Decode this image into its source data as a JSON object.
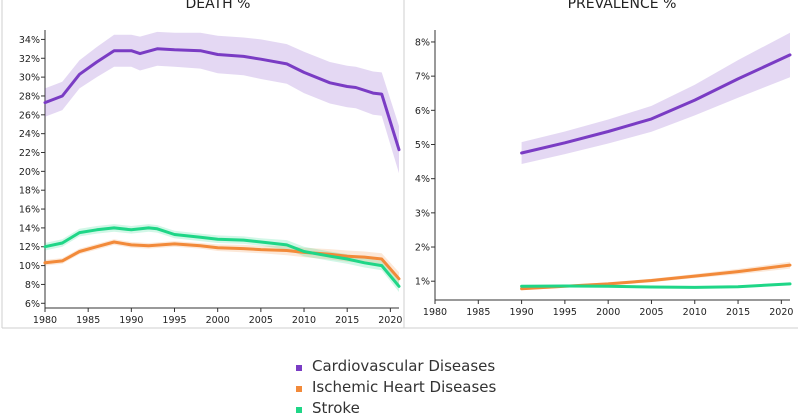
{
  "colors": {
    "cardio": "#7a3cc4",
    "ischemic": "#f28a3a",
    "stroke": "#1fd687",
    "axis": "#333333",
    "divider": "#cfcfcf"
  },
  "legend": {
    "items": [
      {
        "label": "Cardiovascular Diseases",
        "color": "#7a3cc4"
      },
      {
        "label": "Ischemic Heart Diseases",
        "color": "#f28a3a"
      },
      {
        "label": "Stroke",
        "color": "#1fd687"
      }
    ]
  },
  "chart_data": [
    {
      "type": "line",
      "title": "DEATH %",
      "xlabel": "",
      "ylabel": "",
      "xlim": [
        1980,
        2021
      ],
      "ylim": [
        5.5,
        35
      ],
      "x_ticks": [
        1980,
        1985,
        1990,
        1995,
        2000,
        2005,
        2010,
        2015,
        2020
      ],
      "y_ticks": [
        6,
        8,
        10,
        12,
        14,
        16,
        18,
        20,
        22,
        24,
        26,
        28,
        30,
        32,
        34
      ],
      "y_tick_labels": [
        "6%",
        "8%",
        "10%",
        "12%",
        "14%",
        "16%",
        "18%",
        "20%",
        "22%",
        "24%",
        "26%",
        "28%",
        "30%",
        "32%",
        "34%"
      ],
      "series": [
        {
          "name": "Cardiovascular Diseases",
          "color": "#7a3cc4",
          "x": [
            1980,
            1982,
            1984,
            1986,
            1988,
            1989,
            1990,
            1991,
            1993,
            1995,
            1998,
            2000,
            2003,
            2005,
            2008,
            2010,
            2013,
            2015,
            2016,
            2018,
            2019,
            2021
          ],
          "y": [
            27.3,
            28.0,
            30.3,
            31.6,
            32.8,
            32.8,
            32.8,
            32.5,
            33.0,
            32.9,
            32.8,
            32.4,
            32.2,
            31.9,
            31.4,
            30.5,
            29.4,
            29.0,
            28.9,
            28.3,
            28.2,
            22.3
          ],
          "band_half": [
            1.5,
            1.5,
            1.5,
            1.6,
            1.7,
            1.7,
            1.7,
            1.8,
            1.8,
            1.8,
            1.9,
            2.0,
            2.0,
            2.1,
            2.1,
            2.2,
            2.2,
            2.2,
            2.2,
            2.3,
            2.3,
            2.5
          ]
        },
        {
          "name": "Ischemic Heart Diseases",
          "color": "#f28a3a",
          "x": [
            1980,
            1982,
            1984,
            1986,
            1988,
            1990,
            1992,
            1995,
            1998,
            2000,
            2003,
            2005,
            2008,
            2010,
            2013,
            2015,
            2017,
            2019,
            2021
          ],
          "y": [
            10.3,
            10.5,
            11.5,
            12.0,
            12.5,
            12.2,
            12.1,
            12.3,
            12.1,
            11.9,
            11.8,
            11.7,
            11.6,
            11.4,
            11.2,
            11.0,
            10.9,
            10.7,
            8.6
          ],
          "band_half": [
            0.3,
            0.3,
            0.3,
            0.3,
            0.3,
            0.3,
            0.3,
            0.3,
            0.3,
            0.35,
            0.4,
            0.4,
            0.5,
            0.5,
            0.55,
            0.6,
            0.6,
            0.6,
            0.7
          ]
        },
        {
          "name": "Stroke",
          "color": "#1fd687",
          "x": [
            1980,
            1982,
            1984,
            1986,
            1988,
            1990,
            1992,
            1993,
            1995,
            1998,
            2000,
            2003,
            2005,
            2008,
            2010,
            2013,
            2015,
            2017,
            2019,
            2021
          ],
          "y": [
            12.0,
            12.4,
            13.5,
            13.8,
            14.0,
            13.8,
            14.0,
            13.9,
            13.3,
            13.0,
            12.8,
            12.7,
            12.5,
            12.2,
            11.5,
            11.0,
            10.7,
            10.3,
            10.0,
            7.8
          ],
          "band_half": [
            0.4,
            0.4,
            0.4,
            0.4,
            0.4,
            0.4,
            0.4,
            0.4,
            0.4,
            0.4,
            0.4,
            0.4,
            0.4,
            0.5,
            0.5,
            0.5,
            0.5,
            0.5,
            0.5,
            0.6
          ]
        }
      ]
    },
    {
      "type": "line",
      "title": "PREVALENCE %",
      "xlabel": "",
      "ylabel": "",
      "xlim": [
        1980,
        2021
      ],
      "ylim": [
        0.45,
        8.35
      ],
      "x_ticks": [
        1980,
        1985,
        1990,
        1995,
        2000,
        2005,
        2010,
        2015,
        2020
      ],
      "y_ticks": [
        1,
        2,
        3,
        4,
        5,
        6,
        7,
        8
      ],
      "y_tick_labels": [
        "1%",
        "2%",
        "3%",
        "4%",
        "5%",
        "6%",
        "7%",
        "8%"
      ],
      "series": [
        {
          "name": "Cardiovascular Diseases",
          "color": "#7a3cc4",
          "x": [
            1990,
            1995,
            2000,
            2005,
            2010,
            2015,
            2021
          ],
          "y": [
            4.75,
            5.05,
            5.38,
            5.75,
            6.3,
            6.92,
            7.62
          ],
          "band_half": [
            0.32,
            0.33,
            0.35,
            0.38,
            0.45,
            0.55,
            0.65
          ]
        },
        {
          "name": "Ischemic Heart Diseases",
          "color": "#f28a3a",
          "x": [
            1990,
            1995,
            2000,
            2005,
            2010,
            2015,
            2021
          ],
          "y": [
            0.78,
            0.85,
            0.92,
            1.02,
            1.15,
            1.28,
            1.47
          ],
          "band_half": [
            0.04,
            0.04,
            0.05,
            0.05,
            0.06,
            0.08,
            0.1
          ]
        },
        {
          "name": "Stroke",
          "color": "#1fd687",
          "x": [
            1990,
            1995,
            2000,
            2005,
            2010,
            2015,
            2021
          ],
          "y": [
            0.85,
            0.86,
            0.85,
            0.83,
            0.82,
            0.84,
            0.92
          ],
          "band_half": [
            0.03,
            0.03,
            0.03,
            0.03,
            0.03,
            0.03,
            0.03
          ]
        }
      ]
    }
  ]
}
